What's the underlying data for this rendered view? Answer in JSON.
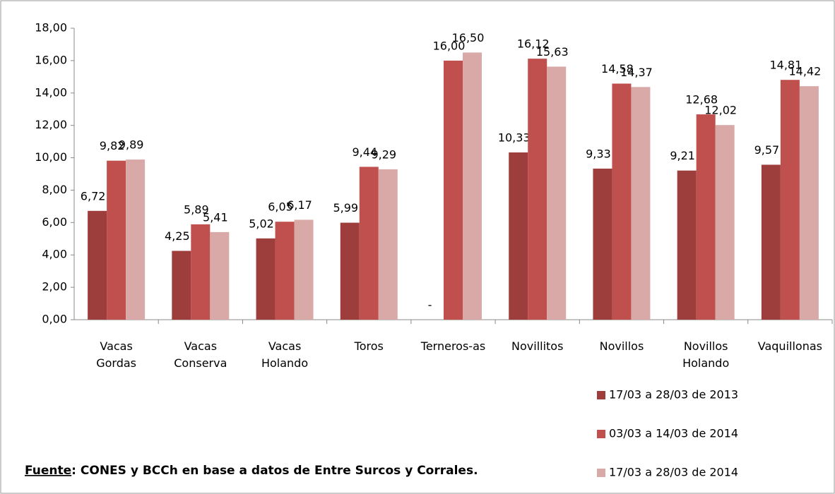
{
  "chart_data": {
    "type": "bar",
    "categories": [
      "Vacas Gordas",
      "Vacas Conserva",
      "Vacas Holando",
      "Toros",
      "Terneros-as",
      "Novillitos",
      "Novillos",
      "Novillos Holando",
      "Vaquillonas"
    ],
    "series": [
      {
        "name": "17/03 a 28/03 de 2013",
        "color": "#9e3e3c",
        "values": [
          6.72,
          4.25,
          5.02,
          5.99,
          null,
          10.33,
          9.33,
          9.21,
          9.57
        ],
        "value_labels": [
          "6,72",
          "4,25",
          "5,02",
          "5,99",
          "-",
          "10,33",
          "9,33",
          "9,21",
          "9,57"
        ]
      },
      {
        "name": "03/03 a 14/03 de 2014",
        "color": "#c0504d",
        "values": [
          9.82,
          5.89,
          6.05,
          9.44,
          16.0,
          16.12,
          14.58,
          12.68,
          14.81
        ],
        "value_labels": [
          "9,82",
          "5,89",
          "6,05",
          "9,44",
          "16,00",
          "16,12",
          "14,58",
          "12,68",
          "14,81"
        ]
      },
      {
        "name": "17/03 a 28/03 de 2014",
        "color": "#d9a9a8",
        "values": [
          9.89,
          5.41,
          6.17,
          9.29,
          16.5,
          15.63,
          14.37,
          12.02,
          14.42
        ],
        "value_labels": [
          "9,89",
          "5,41",
          "6,17",
          "9,29",
          "16,50",
          "15,63",
          "14,37",
          "12,02",
          "14,42"
        ]
      }
    ],
    "ylim": [
      0,
      18
    ],
    "yticks": [
      {
        "value": 0,
        "label": "0,00"
      },
      {
        "value": 2,
        "label": "2,00"
      },
      {
        "value": 4,
        "label": "4,00"
      },
      {
        "value": 6,
        "label": "6,00"
      },
      {
        "value": 8,
        "label": "8,00"
      },
      {
        "value": 10,
        "label": "10,00"
      },
      {
        "value": 12,
        "label": "12,00"
      },
      {
        "value": 14,
        "label": "14,00"
      },
      {
        "value": 16,
        "label": "16,00"
      },
      {
        "value": 18,
        "label": "18,00"
      }
    ],
    "grid": false,
    "source": {
      "label": "Fuente",
      "text": ": CONES y BCCh en base a datos de Entre Surcos y Corrales."
    }
  }
}
